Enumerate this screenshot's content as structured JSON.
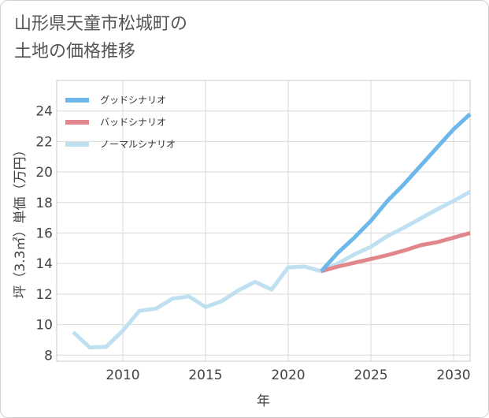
{
  "title_lines": [
    "山形県天童市松城町の",
    "土地の価格推移"
  ],
  "chart_data": {
    "type": "line",
    "xlabel": "年",
    "ylabel": "坪（3.3㎡）単価（万円）",
    "xlim": [
      2006,
      2031
    ],
    "ylim": [
      7.6,
      26
    ],
    "xticks": [
      2010,
      2015,
      2020,
      2025,
      2030
    ],
    "yticks": [
      8,
      10,
      12,
      14,
      16,
      18,
      20,
      22,
      24
    ],
    "grid": true,
    "legend_position": "top-left",
    "series": [
      {
        "name": "グッドシナリオ",
        "color": "#6cb8ea",
        "x": [
          2022,
          2023,
          2024,
          2025,
          2026,
          2027,
          2028,
          2029,
          2030,
          2031
        ],
        "y": [
          13.5,
          14.7,
          15.7,
          16.8,
          18.1,
          19.2,
          20.4,
          21.6,
          22.8,
          23.8
        ]
      },
      {
        "name": "バッドシナリオ",
        "color": "#e0868c",
        "x": [
          2022,
          2023,
          2024,
          2025,
          2026,
          2027,
          2028,
          2029,
          2030,
          2031
        ],
        "y": [
          13.5,
          13.8,
          14.05,
          14.3,
          14.55,
          14.85,
          15.2,
          15.4,
          15.7,
          16.0
        ]
      },
      {
        "name": "ノーマルシナリオ",
        "color": "#bfe0f0",
        "x": [
          2007,
          2008,
          2009,
          2010,
          2011,
          2012,
          2013,
          2014,
          2015,
          2016,
          2017,
          2018,
          2019,
          2020,
          2021,
          2022,
          2023,
          2024,
          2025,
          2026,
          2027,
          2028,
          2029,
          2030,
          2031
        ],
        "y": [
          9.5,
          8.5,
          8.55,
          9.6,
          10.9,
          11.05,
          11.7,
          11.85,
          11.15,
          11.55,
          12.25,
          12.8,
          12.3,
          13.75,
          13.8,
          13.5,
          14.0,
          14.6,
          15.1,
          15.8,
          16.35,
          16.95,
          17.55,
          18.1,
          18.7
        ]
      }
    ]
  }
}
